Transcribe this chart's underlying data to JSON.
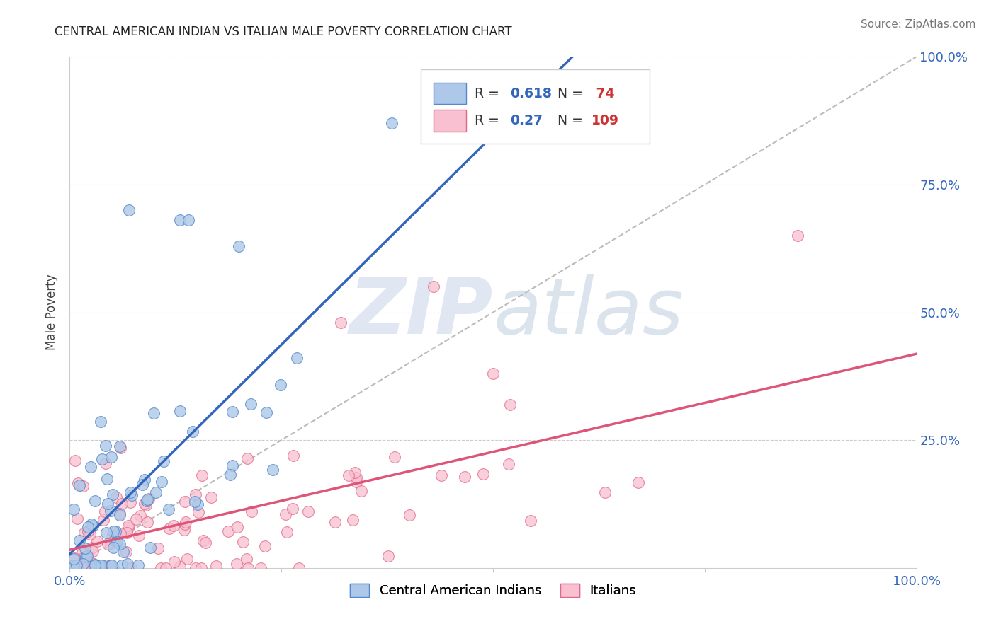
{
  "title": "CENTRAL AMERICAN INDIAN VS ITALIAN MALE POVERTY CORRELATION CHART",
  "source_text": "Source: ZipAtlas.com",
  "ylabel": "Male Poverty",
  "xlim": [
    0,
    1
  ],
  "ylim": [
    0,
    1
  ],
  "xtick_labels": [
    "0.0%",
    "",
    "",
    "",
    "100.0%"
  ],
  "ytick_labels_right": [
    "",
    "25.0%",
    "50.0%",
    "75.0%",
    "100.0%"
  ],
  "blue_color": "#adc8e8",
  "blue_edge_color": "#5588cc",
  "pink_color": "#f8c0d0",
  "pink_edge_color": "#e06888",
  "blue_line_color": "#3366bb",
  "pink_line_color": "#dd5577",
  "ref_line_color": "#bbbbbb",
  "R_blue": 0.618,
  "N_blue": 74,
  "R_pink": 0.27,
  "N_pink": 109,
  "legend_R_color": "#3366bb",
  "legend_N_color": "#cc3333",
  "watermark_color": "#ccd8ea",
  "grid_color": "#cccccc",
  "title_color": "#222222",
  "source_color": "#777777",
  "ylabel_color": "#444444",
  "tick_label_color": "#3366bb"
}
